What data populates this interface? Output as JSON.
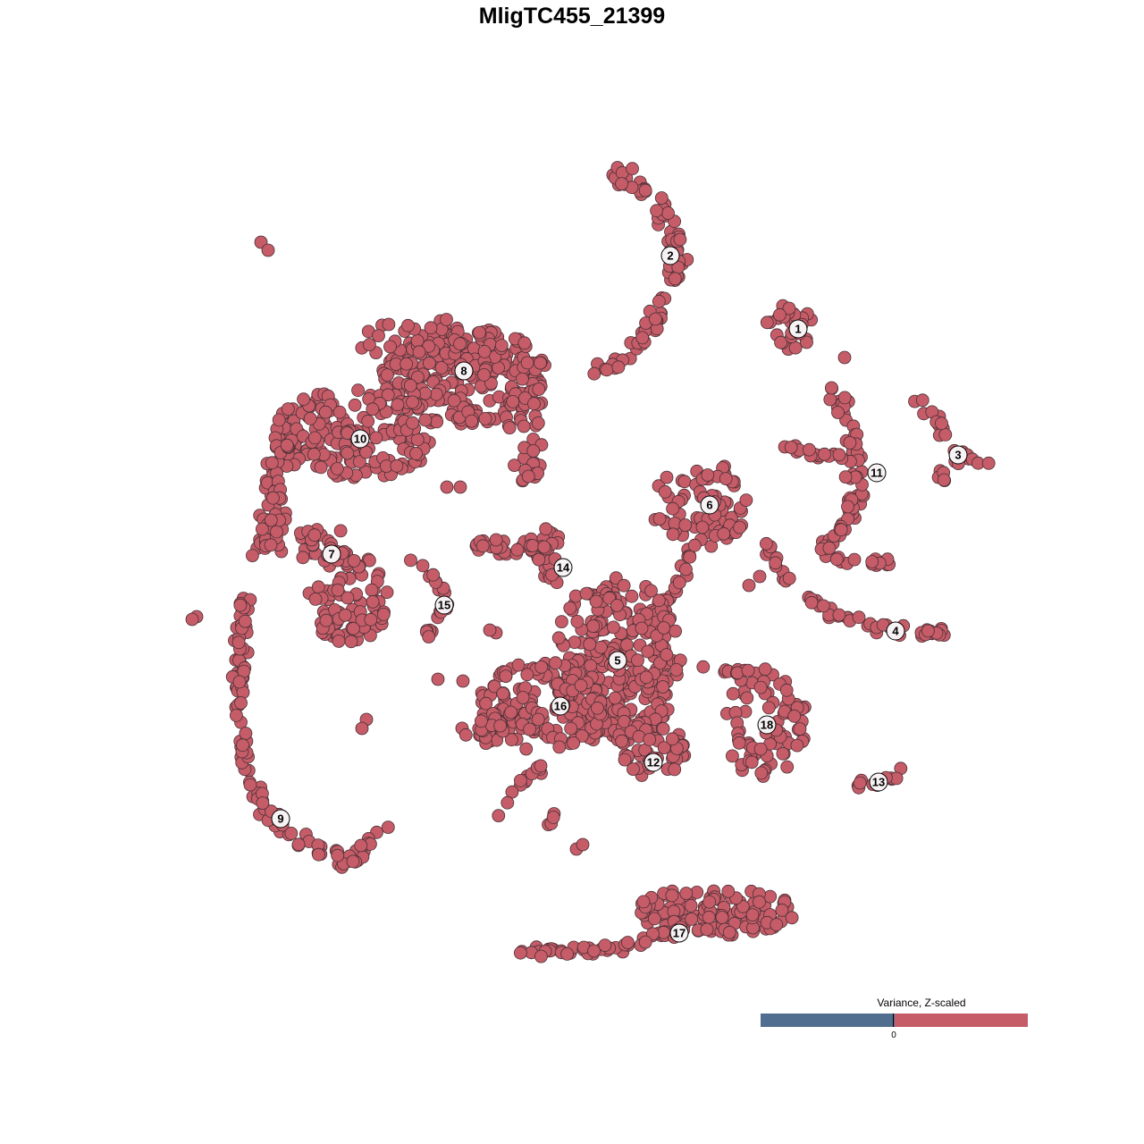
{
  "chart_data": {
    "type": "scatter",
    "title": "MligTC455_21399",
    "xlabel": "",
    "ylabel": "",
    "grid": false,
    "axes_visible": false,
    "point_color": "#c55c68",
    "point_stroke": "#4a3035",
    "cluster_labels": [
      "1",
      "2",
      "3",
      "4",
      "5",
      "6",
      "7",
      "8",
      "9",
      "10",
      "11",
      "12",
      "13",
      "14",
      "15",
      "16",
      "17",
      "18"
    ],
    "legend": {
      "title": "Variance, Z-scaled",
      "tick": "0",
      "placement": "bottom-right",
      "low_color": "#516e91",
      "high_color": "#c55c68"
    }
  }
}
